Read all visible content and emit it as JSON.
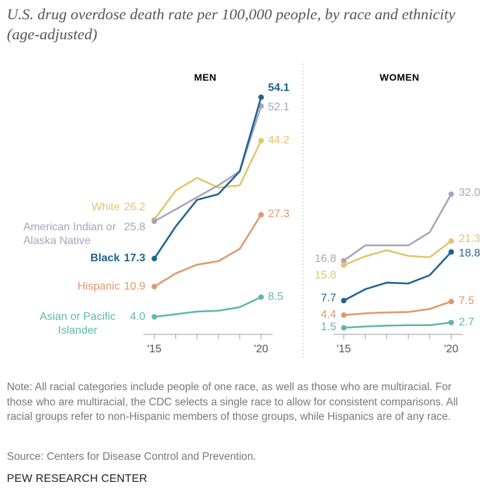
{
  "title": "U.S. drug overdose death rate per 100,000 people, by race and ethnicity (age-adjusted)",
  "chart_data": [
    {
      "type": "line",
      "title": "MEN",
      "x": [
        2015,
        2016,
        2017,
        2018,
        2019,
        2020
      ],
      "xticks": [
        {
          "value": 2015,
          "label": "'15"
        },
        {
          "value": 2020,
          "label": "'20"
        }
      ],
      "ylim": [
        0,
        56
      ],
      "series": [
        {
          "name": "White",
          "color": "#e3c46b",
          "values": [
            26.2,
            32.8,
            35.7,
            33.5,
            34.0,
            44.2
          ],
          "value_labels": [
            "26.2",
            null,
            null,
            null,
            null,
            "44.2"
          ]
        },
        {
          "name": "American Indian or Alaska Native",
          "color": "#a9a3b9",
          "values": [
            25.8,
            28.5,
            31.3,
            34.0,
            37.2,
            52.1
          ],
          "value_labels": [
            "25.8",
            null,
            null,
            null,
            null,
            "52.1"
          ]
        },
        {
          "name": "Black",
          "color": "#1f6391",
          "values": [
            17.3,
            24.6,
            30.7,
            32.0,
            37.2,
            54.1
          ],
          "value_labels": [
            "17.3",
            null,
            null,
            null,
            null,
            "54.1"
          ]
        },
        {
          "name": "Hispanic",
          "color": "#e0986a",
          "values": [
            10.9,
            13.9,
            15.9,
            16.7,
            19.5,
            27.3
          ],
          "value_labels": [
            "10.9",
            null,
            null,
            null,
            null,
            "27.3"
          ]
        },
        {
          "name": "Asian or Pacific Islander",
          "color": "#5fb8a6",
          "values": [
            4.0,
            4.6,
            5.2,
            5.4,
            6.2,
            8.5
          ],
          "value_labels": [
            "4.0",
            null,
            null,
            null,
            null,
            "8.5"
          ]
        }
      ]
    },
    {
      "type": "line",
      "title": "WOMEN",
      "x": [
        2015,
        2016,
        2017,
        2018,
        2019,
        2020
      ],
      "xticks": [
        {
          "value": 2015,
          "label": "'15"
        },
        {
          "value": 2020,
          "label": "'20"
        }
      ],
      "ylim": [
        0,
        56
      ],
      "series": [
        {
          "color": "#a9a3b9",
          "values": [
            16.8,
            20.3,
            20.3,
            20.3,
            23.3,
            32.0
          ],
          "value_labels": [
            "16.8",
            null,
            null,
            null,
            null,
            "32.0"
          ]
        },
        {
          "color": "#e3c46b",
          "values": [
            15.8,
            17.8,
            19.2,
            17.9,
            17.6,
            21.3
          ],
          "value_labels": [
            "15.8",
            null,
            null,
            null,
            null,
            "21.3"
          ]
        },
        {
          "color": "#1f6391",
          "values": [
            7.7,
            10.3,
            11.8,
            11.6,
            13.5,
            18.8
          ],
          "value_labels": [
            "7.7",
            null,
            null,
            null,
            null,
            "18.8"
          ]
        },
        {
          "color": "#e0986a",
          "values": [
            4.4,
            4.8,
            5.0,
            5.1,
            5.8,
            7.5
          ],
          "value_labels": [
            "4.4",
            null,
            null,
            null,
            null,
            "7.5"
          ]
        },
        {
          "color": "#5fb8a6",
          "values": [
            1.5,
            1.8,
            2.0,
            2.1,
            2.1,
            2.7
          ],
          "value_labels": [
            "1.5",
            null,
            null,
            null,
            null,
            "2.7"
          ]
        }
      ]
    }
  ],
  "note": "Note: All racial categories include people of one race, as well as those who are multiracial. For those who are multiracial, the CDC selects a single race to allow for consistent comparisons. All racial groups refer to non-Hispanic members of those groups, while Hispanics are of any race.",
  "source": "Source: Centers for Disease Control and Prevention.",
  "brand": "PEW RESEARCH CENTER"
}
